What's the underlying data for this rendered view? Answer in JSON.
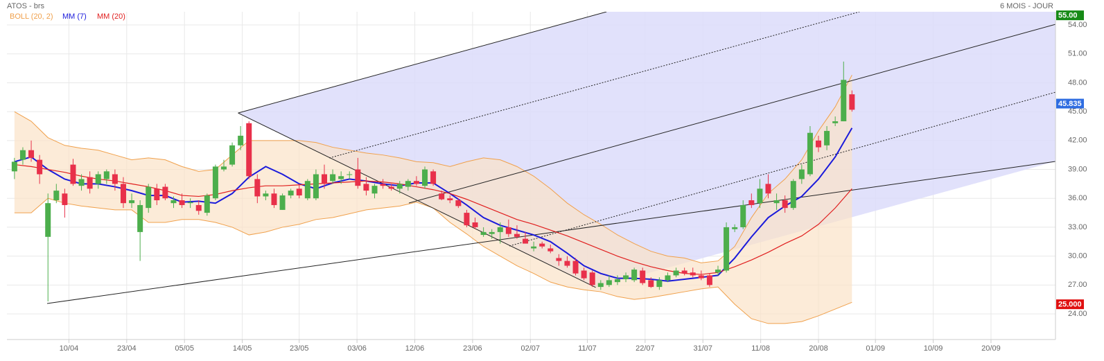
{
  "chart_data": {
    "type": "candlestick",
    "title": "ATOS - brs",
    "subtitle": "6 MOIS - JOUR",
    "up_color": "#4cae4c",
    "down_color": "#e8304a",
    "grid": true,
    "xlim": [
      -0.9,
      124.3
    ],
    "ylim": [
      21.34,
      55.37
    ],
    "xticks": [
      {
        "value": 6.5,
        "label": "10/04"
      },
      {
        "value": 13.4,
        "label": "23/04"
      },
      {
        "value": 20.3,
        "label": "05/05"
      },
      {
        "value": 27.2,
        "label": "14/05"
      },
      {
        "value": 34.0,
        "label": "23/05"
      },
      {
        "value": 40.9,
        "label": "03/06"
      },
      {
        "value": 47.8,
        "label": "12/06"
      },
      {
        "value": 54.7,
        "label": "23/06"
      },
      {
        "value": 61.6,
        "label": "02/07"
      },
      {
        "value": 68.4,
        "label": "11/07"
      },
      {
        "value": 75.3,
        "label": "22/07"
      },
      {
        "value": 82.2,
        "label": "31/07"
      },
      {
        "value": 89.1,
        "label": "11/08"
      },
      {
        "value": 96.0,
        "label": "20/08"
      },
      {
        "value": 102.8,
        "label": "01/09"
      },
      {
        "value": 109.7,
        "label": "10/09"
      },
      {
        "value": 116.6,
        "label": "20/09"
      }
    ],
    "yticks": [
      {
        "value": 24,
        "label": "24.00"
      },
      {
        "value": 27,
        "label": "27.00"
      },
      {
        "value": 30,
        "label": "30.00"
      },
      {
        "value": 33,
        "label": "33.00"
      },
      {
        "value": 36,
        "label": "36.00"
      },
      {
        "value": 39,
        "label": "39.00"
      },
      {
        "value": 42,
        "label": "42.00"
      },
      {
        "value": 45,
        "label": "45.00"
      },
      {
        "value": 48,
        "label": "48.00"
      },
      {
        "value": 51,
        "label": "51.00"
      },
      {
        "value": 54,
        "label": "54.00"
      }
    ],
    "x": [
      0,
      1,
      2,
      3,
      4,
      5,
      6,
      7,
      8,
      9,
      10,
      11,
      12,
      13,
      14,
      15,
      16,
      17,
      18,
      19,
      20,
      21,
      22,
      23,
      24,
      25,
      26,
      27,
      28,
      29,
      30,
      31,
      32,
      33,
      34,
      35,
      36,
      37,
      38,
      39,
      40,
      41,
      42,
      43,
      44,
      45,
      46,
      47,
      48,
      49,
      50,
      51,
      52,
      53,
      54,
      55,
      56,
      57,
      58,
      59,
      60,
      61,
      62,
      63,
      64,
      65,
      66,
      67,
      68,
      69,
      70,
      71,
      72,
      73,
      74,
      75,
      76,
      77,
      78,
      79,
      80,
      81,
      82,
      83,
      84,
      85,
      86,
      87,
      88,
      89,
      90,
      91,
      92,
      93,
      94,
      95,
      96,
      97,
      98,
      99,
      100
    ],
    "open": [
      38.8,
      40.0,
      41.0,
      40.0,
      32.0,
      35.8,
      36.5,
      39.5,
      37.3,
      38.2,
      37.5,
      38.0,
      38.5,
      37.5,
      35.5,
      32.5,
      35.0,
      37.0,
      37.2,
      35.5,
      35.8,
      35.5,
      35.3,
      34.5,
      36.0,
      39.0,
      39.5,
      41.5,
      43.8,
      38.0,
      36.2,
      36.5,
      34.8,
      36.3,
      37.0,
      36.0,
      36.0,
      38.5,
      37.8,
      38.0,
      38.5,
      39.0,
      37.5,
      36.5,
      37.5,
      37.2,
      37.0,
      37.2,
      37.8,
      37.3,
      38.8,
      36.5,
      36.0,
      35.8,
      34.5,
      33.5,
      32.2,
      32.3,
      32.5,
      33.0,
      32.3,
      31.8,
      30.8,
      31.3,
      30.8,
      29.8,
      29.5,
      29.5,
      28.5,
      28.3,
      26.8,
      27.0,
      27.3,
      27.6,
      27.5,
      28.5,
      27.5,
      26.8,
      27.5,
      28.0,
      28.5,
      28.3,
      28.0,
      28.0,
      28.3,
      28.5,
      32.8,
      33.0,
      35.8,
      35.5,
      37.5,
      35.5,
      35.8,
      35.0,
      38.0,
      38.5,
      42.0,
      41.5,
      43.8,
      44.0,
      46.8
    ],
    "high": [
      40.2,
      41.3,
      42.0,
      40.5,
      36.5,
      37.5,
      37.0,
      40.1,
      38.5,
      38.8,
      38.8,
      39.0,
      39.0,
      38.2,
      36.5,
      35.8,
      37.5,
      37.5,
      37.5,
      36.2,
      36.5,
      36.0,
      35.8,
      36.5,
      39.5,
      40.0,
      41.8,
      43.5,
      44.0,
      38.5,
      36.8,
      37.0,
      36.5,
      37.0,
      37.5,
      38.0,
      39.0,
      39.5,
      39.0,
      38.8,
      38.8,
      40.2,
      38.2,
      37.5,
      38.0,
      37.5,
      37.8,
      38.0,
      38.3,
      39.3,
      39.0,
      36.8,
      36.3,
      36.0,
      34.8,
      34.0,
      33.0,
      32.8,
      33.5,
      33.8,
      33.2,
      32.5,
      31.5,
      31.5,
      31.2,
      30.2,
      30.0,
      29.8,
      28.8,
      28.5,
      27.5,
      28.0,
      28.0,
      28.3,
      28.8,
      28.8,
      27.8,
      27.8,
      28.3,
      28.8,
      28.8,
      28.8,
      28.5,
      28.2,
      29.0,
      33.5,
      33.3,
      35.8,
      36.5,
      38.0,
      38.5,
      36.5,
      36.3,
      38.0,
      39.5,
      43.5,
      42.5,
      43.5,
      44.5,
      50.2,
      47.2
    ],
    "low": [
      38.0,
      39.5,
      39.8,
      37.5,
      25.3,
      35.5,
      34.0,
      37.3,
      36.8,
      36.5,
      37.0,
      37.5,
      36.8,
      35.0,
      35.0,
      29.5,
      34.5,
      35.3,
      35.8,
      35.0,
      35.0,
      35.0,
      34.3,
      34.2,
      35.8,
      38.8,
      39.3,
      41.0,
      38.0,
      35.5,
      35.8,
      35.0,
      34.8,
      36.0,
      36.0,
      35.8,
      35.8,
      37.0,
      37.5,
      37.5,
      38.0,
      37.0,
      36.3,
      36.0,
      37.0,
      36.8,
      36.5,
      36.8,
      37.3,
      37.0,
      37.3,
      35.8,
      35.5,
      35.0,
      33.0,
      32.8,
      32.0,
      31.8,
      31.3,
      32.0,
      31.8,
      31.3,
      30.5,
      30.8,
      30.3,
      29.0,
      28.8,
      28.0,
      27.5,
      26.8,
      26.5,
      26.8,
      27.0,
      27.3,
      27.3,
      27.0,
      26.7,
      26.5,
      27.3,
      27.8,
      28.0,
      27.8,
      27.5,
      26.8,
      28.0,
      28.3,
      32.5,
      32.8,
      35.0,
      35.0,
      36.0,
      34.8,
      34.5,
      34.8,
      37.5,
      38.3,
      40.8,
      41.0,
      43.5,
      44.0,
      45.0
    ],
    "close": [
      39.8,
      41.0,
      40.2,
      38.5,
      35.5,
      36.8,
      35.3,
      37.5,
      38.0,
      37.0,
      38.5,
      38.8,
      37.5,
      35.5,
      35.8,
      35.3,
      37.2,
      35.8,
      36.0,
      35.8,
      35.3,
      35.6,
      34.7,
      36.3,
      39.3,
      39.3,
      41.5,
      42.5,
      38.3,
      36.2,
      36.5,
      35.3,
      36.3,
      36.8,
      36.3,
      37.8,
      38.5,
      37.5,
      38.5,
      38.3,
      38.5,
      37.3,
      36.8,
      37.3,
      37.3,
      37.0,
      37.5,
      37.8,
      37.5,
      39.0,
      37.5,
      35.9,
      35.8,
      35.2,
      33.2,
      33.0,
      32.5,
      32.5,
      33.0,
      32.3,
      32.0,
      31.3,
      31.0,
      31.0,
      30.5,
      29.5,
      29.0,
      28.2,
      27.7,
      27.0,
      27.2,
      27.5,
      27.6,
      28.0,
      28.6,
      27.2,
      26.8,
      27.5,
      28.0,
      28.5,
      28.2,
      28.0,
      27.7,
      27.0,
      28.6,
      33.0,
      33.0,
      35.3,
      35.3,
      37.0,
      36.5,
      35.8,
      35.0,
      37.8,
      39.0,
      42.8,
      41.3,
      43.0,
      44.0,
      48.3,
      45.2
    ],
    "overlays": [
      {
        "name": "BOLL (20, 2)",
        "color": "#f0a04b",
        "fill": "#fbe3c8",
        "x": [
          0,
          2,
          4,
          6,
          8,
          10,
          12,
          14,
          16,
          18,
          20,
          22,
          24,
          26,
          28,
          30,
          32,
          34,
          36,
          38,
          40,
          42,
          44,
          46,
          48,
          50,
          52,
          54,
          56,
          58,
          60,
          62,
          64,
          66,
          68,
          70,
          72,
          74,
          76,
          78,
          80,
          82,
          84,
          86,
          88,
          90,
          92,
          94,
          96,
          98,
          100
        ],
        "upper": [
          45.0,
          44.0,
          42.3,
          41.5,
          41.2,
          41.0,
          40.5,
          40.0,
          40.2,
          40.0,
          39.3,
          38.8,
          39.0,
          40.5,
          42.0,
          42.0,
          42.0,
          42.0,
          41.8,
          41.3,
          41.0,
          40.7,
          40.5,
          40.2,
          39.8,
          39.7,
          39.3,
          39.8,
          40.2,
          40.0,
          39.3,
          38.3,
          37.0,
          35.5,
          34.3,
          33.3,
          32.2,
          31.3,
          30.5,
          30.0,
          29.8,
          29.3,
          29.5,
          31.0,
          34.0,
          36.5,
          38.0,
          40.0,
          43.0,
          45.5,
          48.8
        ],
        "lower": [
          34.5,
          34.5,
          36.0,
          35.5,
          35.2,
          35.0,
          34.8,
          34.8,
          33.5,
          33.5,
          33.8,
          33.8,
          33.5,
          33.0,
          32.2,
          32.5,
          33.0,
          33.3,
          33.8,
          34.0,
          34.4,
          34.8,
          35.0,
          35.2,
          35.6,
          35.0,
          33.5,
          32.3,
          31.0,
          30.0,
          29.0,
          28.2,
          27.3,
          26.8,
          26.5,
          26.3,
          25.8,
          25.5,
          25.7,
          26.0,
          26.3,
          26.6,
          26.8,
          25.0,
          23.5,
          23.0,
          23.0,
          23.2,
          23.8,
          24.5,
          25.2
        ]
      },
      {
        "name": "MM (7)",
        "color": "#1a1adb",
        "x": [
          0,
          2,
          4,
          6,
          8,
          10,
          12,
          14,
          16,
          18,
          20,
          22,
          24,
          26,
          28,
          30,
          32,
          34,
          36,
          38,
          40,
          42,
          44,
          46,
          48,
          50,
          52,
          54,
          56,
          58,
          60,
          62,
          64,
          66,
          68,
          70,
          72,
          74,
          76,
          78,
          80,
          82,
          84,
          86,
          88,
          90,
          92,
          94,
          96,
          98,
          100
        ],
        "values": [
          39.8,
          40.3,
          39.0,
          38.0,
          37.5,
          37.5,
          37.2,
          36.8,
          36.3,
          36.3,
          35.6,
          35.7,
          35.5,
          36.5,
          38.2,
          39.3,
          38.5,
          37.5,
          37.0,
          37.6,
          38.0,
          37.8,
          37.5,
          37.3,
          37.6,
          37.6,
          36.5,
          35.3,
          34.0,
          33.2,
          32.7,
          32.2,
          31.5,
          30.3,
          29.0,
          28.2,
          27.7,
          27.7,
          27.6,
          27.4,
          27.6,
          27.8,
          28.0,
          29.8,
          32.0,
          34.0,
          35.2,
          36.2,
          38.0,
          40.3,
          43.3
        ]
      },
      {
        "name": "MM (20)",
        "color": "#e01e1e",
        "x": [
          0,
          2,
          4,
          6,
          8,
          10,
          12,
          14,
          16,
          18,
          20,
          22,
          24,
          26,
          28,
          30,
          32,
          34,
          36,
          38,
          40,
          42,
          44,
          46,
          48,
          50,
          52,
          54,
          56,
          58,
          60,
          62,
          64,
          66,
          68,
          70,
          72,
          74,
          76,
          78,
          80,
          82,
          84,
          86,
          88,
          90,
          92,
          94,
          96,
          98,
          100
        ],
        "values": [
          39.5,
          39.3,
          39.0,
          38.7,
          38.3,
          38.0,
          37.8,
          37.5,
          37.2,
          36.8,
          36.3,
          36.2,
          36.4,
          36.8,
          37.1,
          37.3,
          37.3,
          37.4,
          37.5,
          37.6,
          37.7,
          37.8,
          37.7,
          37.5,
          37.2,
          36.9,
          36.5,
          35.9,
          35.2,
          34.5,
          33.8,
          33.3,
          32.7,
          32.1,
          31.4,
          30.7,
          30.0,
          29.4,
          28.9,
          28.5,
          28.2,
          28.1,
          28.3,
          28.9,
          29.6,
          30.4,
          31.3,
          32.1,
          33.3,
          35.0,
          37.0
        ]
      }
    ],
    "shade": {
      "color": "#dcdcfa",
      "x": [
        26.7,
        70.7,
        124.3,
        124.3,
        69.4
      ],
      "y": [
        44.86,
        55.37,
        55.37,
        39.83,
        26.75
      ]
    },
    "lines": [
      {
        "x": [
          3.9,
          124.3
        ],
        "y": [
          25.08,
          39.83
        ],
        "dashed": false
      },
      {
        "x": [
          26.7,
          69.4
        ],
        "y": [
          44.86,
          26.75
        ],
        "dashed": false
      },
      {
        "x": [
          26.7,
          70.7
        ],
        "y": [
          44.86,
          55.37
        ],
        "dashed": false
      },
      {
        "x": [
          47.1,
          124.3
        ],
        "y": [
          35.51,
          54.07
        ],
        "dashed": false
      },
      {
        "x": [
          37.6,
          100.9
        ],
        "y": [
          40.19,
          55.37
        ],
        "dashed": true
      },
      {
        "x": [
          59.1,
          124.3
        ],
        "y": [
          31.05,
          47.02
        ],
        "dashed": true
      }
    ],
    "price_labels": [
      {
        "value": 55,
        "label": "55.00",
        "color": "#168a16"
      },
      {
        "value": 45.835,
        "label": "45.835",
        "color": "#2f6de1"
      },
      {
        "value": 25,
        "label": "25.000",
        "color": "#e01010"
      }
    ]
  }
}
